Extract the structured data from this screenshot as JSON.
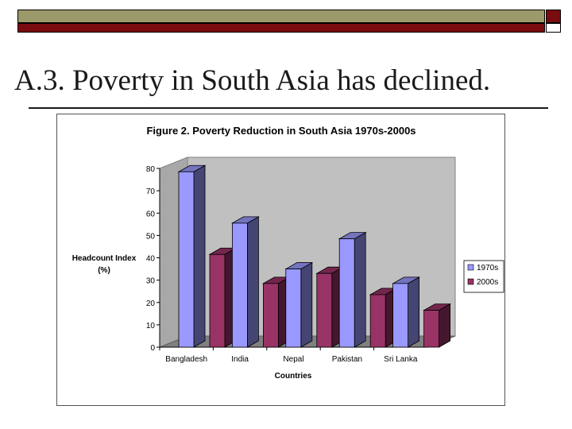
{
  "slide": {
    "title": "A.3. Poverty in South Asia has declined."
  },
  "colors": {
    "olive_bar": "#9c9a6a",
    "maroon_bar": "#7a0c10",
    "series_1970s": "#9999ff",
    "series_2000s": "#993366",
    "plot_wall": "#c0c0c0",
    "plot_floor": "#808080"
  },
  "chart_data": {
    "type": "bar",
    "title": "Figure 2. Poverty Reduction in South Asia 1970s-2000s",
    "xlabel": "Countries",
    "ylabel": "Headcount Index (%)",
    "ylim": [
      0,
      80
    ],
    "yticks": [
      0,
      10,
      20,
      30,
      40,
      50,
      60,
      70,
      80
    ],
    "categories": [
      "Bangladesh",
      "India",
      "Nepal",
      "Pakistan",
      "Sri Lanka"
    ],
    "series": [
      {
        "name": "1970s",
        "values": [
          78.5,
          55.5,
          35,
          48.5,
          28.5
        ]
      },
      {
        "name": "2000s",
        "values": [
          41.5,
          28.5,
          33,
          23.5,
          16.5
        ]
      }
    ],
    "legend": "right",
    "grid": false,
    "style": "3d"
  }
}
